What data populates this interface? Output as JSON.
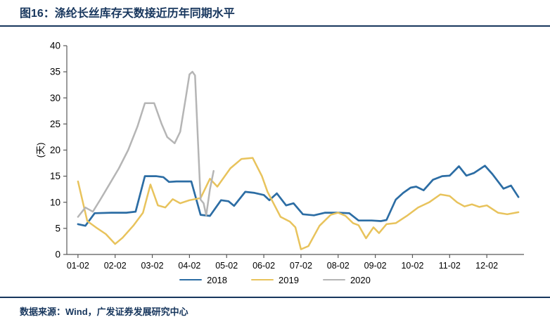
{
  "header": {
    "title": "图16：涤纶长丝库存天数接近历年同期水平"
  },
  "footer": {
    "source": "数据来源：Wind，广发证券发展研究中心"
  },
  "colors": {
    "accent_navy": "#17365D",
    "axis": "#595959"
  },
  "chart_data": {
    "type": "line",
    "title": "涤纶长丝库存天数接近历年同期水平",
    "ylabel": "(天)",
    "ylim": [
      0,
      40
    ],
    "yticks": [
      0,
      5,
      10,
      15,
      20,
      25,
      30,
      35,
      40
    ],
    "x_range": [
      -0.3,
      12.0
    ],
    "xticks": [
      "01-02",
      "02-02",
      "03-02",
      "04-02",
      "05-02",
      "06-02",
      "07-02",
      "08-02",
      "09-02",
      "10-02",
      "11-02",
      "12-02"
    ],
    "grid": false,
    "legend_position": "bottom",
    "series": [
      {
        "name": "2018",
        "color": "#2C6DA4",
        "width": 2.7,
        "points": [
          [
            0,
            5.8
          ],
          [
            0.2,
            5.5
          ],
          [
            0.45,
            7.9
          ],
          [
            0.9,
            8.0
          ],
          [
            1.3,
            8.0
          ],
          [
            1.55,
            8.2
          ],
          [
            1.8,
            15.0
          ],
          [
            2.1,
            15.0
          ],
          [
            2.3,
            14.8
          ],
          [
            2.45,
            13.9
          ],
          [
            2.65,
            14.0
          ],
          [
            3.05,
            14.0
          ],
          [
            3.3,
            7.6
          ],
          [
            3.55,
            7.4
          ],
          [
            3.85,
            10.4
          ],
          [
            4.05,
            10.2
          ],
          [
            4.2,
            9.3
          ],
          [
            4.5,
            12.0
          ],
          [
            4.75,
            11.8
          ],
          [
            5.0,
            11.4
          ],
          [
            5.15,
            10.4
          ],
          [
            5.35,
            11.7
          ],
          [
            5.6,
            9.4
          ],
          [
            5.8,
            9.8
          ],
          [
            6.05,
            7.7
          ],
          [
            6.35,
            7.5
          ],
          [
            6.65,
            8.0
          ],
          [
            7.0,
            8.0
          ],
          [
            7.3,
            7.9
          ],
          [
            7.55,
            6.5
          ],
          [
            7.9,
            6.5
          ],
          [
            8.15,
            6.4
          ],
          [
            8.3,
            6.6
          ],
          [
            8.55,
            10.5
          ],
          [
            8.75,
            11.8
          ],
          [
            8.95,
            12.8
          ],
          [
            9.1,
            13.0
          ],
          [
            9.3,
            12.3
          ],
          [
            9.55,
            14.3
          ],
          [
            9.8,
            15.0
          ],
          [
            10.0,
            15.1
          ],
          [
            10.25,
            16.9
          ],
          [
            10.45,
            15.1
          ],
          [
            10.65,
            15.6
          ],
          [
            10.95,
            17.0
          ],
          [
            11.15,
            15.4
          ],
          [
            11.45,
            12.6
          ],
          [
            11.65,
            13.2
          ],
          [
            11.85,
            11.0
          ]
        ]
      },
      {
        "name": "2019",
        "color": "#E8C35C",
        "width": 2.5,
        "points": [
          [
            0,
            14.0
          ],
          [
            0.25,
            6.4
          ],
          [
            0.5,
            5.1
          ],
          [
            0.75,
            3.9
          ],
          [
            1.0,
            2.0
          ],
          [
            1.2,
            3.2
          ],
          [
            1.5,
            5.6
          ],
          [
            1.75,
            8.0
          ],
          [
            1.95,
            13.4
          ],
          [
            2.15,
            9.4
          ],
          [
            2.35,
            9.0
          ],
          [
            2.55,
            10.6
          ],
          [
            2.75,
            9.8
          ],
          [
            3.0,
            10.4
          ],
          [
            3.3,
            10.8
          ],
          [
            3.55,
            14.5
          ],
          [
            3.75,
            13.0
          ],
          [
            4.1,
            16.5
          ],
          [
            4.4,
            18.3
          ],
          [
            4.7,
            18.5
          ],
          [
            4.95,
            15.0
          ],
          [
            5.1,
            12.0
          ],
          [
            5.45,
            7.2
          ],
          [
            5.7,
            6.3
          ],
          [
            5.85,
            5.2
          ],
          [
            6.0,
            1.0
          ],
          [
            6.2,
            1.6
          ],
          [
            6.5,
            5.5
          ],
          [
            6.8,
            7.6
          ],
          [
            7.0,
            8.0
          ],
          [
            7.2,
            7.4
          ],
          [
            7.4,
            6.0
          ],
          [
            7.55,
            5.6
          ],
          [
            7.75,
            3.1
          ],
          [
            7.95,
            5.2
          ],
          [
            8.1,
            4.1
          ],
          [
            8.3,
            5.8
          ],
          [
            8.55,
            6.0
          ],
          [
            8.85,
            7.4
          ],
          [
            9.15,
            9.0
          ],
          [
            9.45,
            10.0
          ],
          [
            9.75,
            11.5
          ],
          [
            10.0,
            11.2
          ],
          [
            10.2,
            10.0
          ],
          [
            10.4,
            9.2
          ],
          [
            10.6,
            9.6
          ],
          [
            10.8,
            9.1
          ],
          [
            11.0,
            9.4
          ],
          [
            11.3,
            8.0
          ],
          [
            11.55,
            7.7
          ],
          [
            11.85,
            8.1
          ]
        ]
      },
      {
        "name": "2020",
        "color": "#B5B5B5",
        "width": 2.5,
        "points": [
          [
            0,
            7.2
          ],
          [
            0.2,
            9.0
          ],
          [
            0.4,
            8.2
          ],
          [
            0.6,
            10.5
          ],
          [
            0.85,
            13.5
          ],
          [
            1.1,
            16.5
          ],
          [
            1.35,
            20.0
          ],
          [
            1.6,
            24.5
          ],
          [
            1.8,
            29.0
          ],
          [
            2.05,
            29.0
          ],
          [
            2.25,
            25.0
          ],
          [
            2.4,
            22.5
          ],
          [
            2.6,
            21.3
          ],
          [
            2.75,
            23.5
          ],
          [
            2.9,
            30.0
          ],
          [
            3.0,
            34.5
          ],
          [
            3.08,
            35.0
          ],
          [
            3.15,
            34.3
          ],
          [
            3.3,
            10.5
          ],
          [
            3.38,
            9.8
          ],
          [
            3.45,
            7.5
          ],
          [
            3.55,
            12.5
          ],
          [
            3.65,
            16.0
          ]
        ]
      }
    ]
  }
}
